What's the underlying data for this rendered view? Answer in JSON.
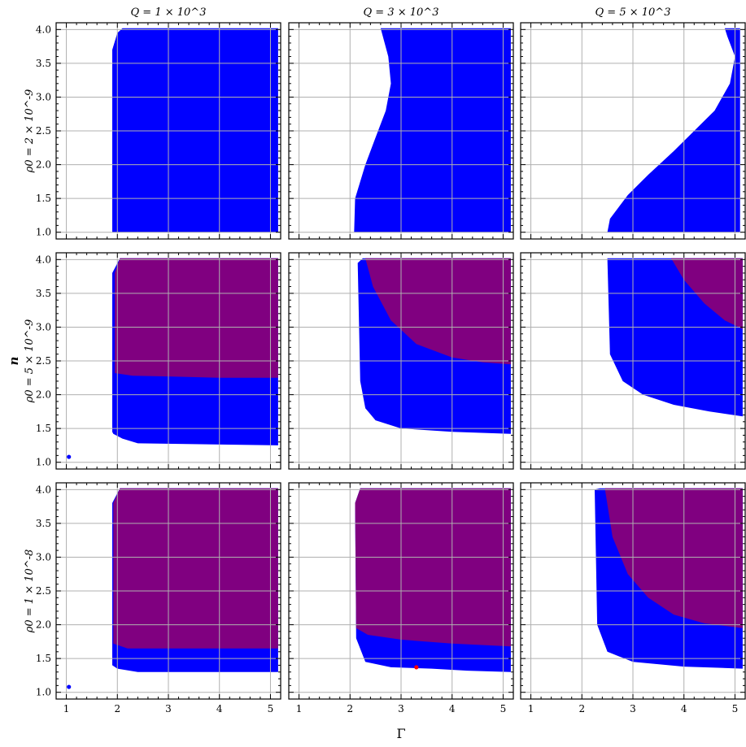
{
  "figure": {
    "column_titles": [
      "Q = 1 × 10^3",
      "Q = 3 × 10^3",
      "Q = 5 × 10^3"
    ],
    "row_labels": [
      "ρ0 = 2 × 10^-9",
      "ρ0 = 5 × 10^-9",
      "ρ0 = 1 × 10^-8"
    ],
    "xlabel": "Γ",
    "ylabel": "n"
  },
  "colors": {
    "blue": "#0000ff",
    "purple": "#800080",
    "red": "#ff0000"
  },
  "chart_data": {
    "type": "scatter",
    "layout": "3x3 grid of panels with shared axes",
    "xlim": [
      0.8,
      5.2
    ],
    "ylim": [
      0.9,
      4.1
    ],
    "xticks": [
      1,
      2,
      3,
      4,
      5
    ],
    "yticks": [
      1.0,
      1.5,
      2.0,
      2.5,
      3.0,
      3.5,
      4.0
    ],
    "xtick_labels": [
      "1",
      "2",
      "3",
      "4",
      "5"
    ],
    "ytick_labels": [
      "1.0",
      "1.5",
      "2.0",
      "2.5",
      "3.0",
      "3.5",
      "4.0"
    ],
    "grid": true,
    "panels": [
      {
        "row": 0,
        "col": 0,
        "regions": [
          {
            "color": "blue",
            "polygon": [
              [
                1.9,
                1.0
              ],
              [
                1.9,
                3.7
              ],
              [
                2.0,
                3.95
              ],
              [
                2.1,
                4.02
              ],
              [
                5.15,
                4.02
              ],
              [
                5.15,
                1.0
              ]
            ]
          }
        ],
        "points": []
      },
      {
        "row": 0,
        "col": 1,
        "regions": [
          {
            "color": "blue",
            "polygon": [
              [
                2.08,
                1.0
              ],
              [
                2.1,
                1.5
              ],
              [
                2.3,
                2.0
              ],
              [
                2.5,
                2.4
              ],
              [
                2.7,
                2.8
              ],
              [
                2.8,
                3.2
              ],
              [
                2.75,
                3.6
              ],
              [
                2.6,
                4.02
              ],
              [
                5.15,
                4.02
              ],
              [
                5.15,
                1.0
              ]
            ]
          }
        ],
        "points": []
      },
      {
        "row": 0,
        "col": 2,
        "regions": [
          {
            "color": "blue",
            "polygon": [
              [
                2.5,
                1.0
              ],
              [
                2.55,
                1.2
              ],
              [
                2.9,
                1.55
              ],
              [
                3.3,
                1.85
              ],
              [
                3.8,
                2.2
              ],
              [
                4.2,
                2.5
              ],
              [
                4.6,
                2.8
              ],
              [
                4.9,
                3.2
              ],
              [
                5.0,
                3.6
              ],
              [
                4.85,
                3.9
              ],
              [
                4.8,
                4.02
              ],
              [
                5.1,
                4.02
              ],
              [
                5.1,
                1.0
              ]
            ]
          }
        ],
        "points": []
      },
      {
        "row": 1,
        "col": 0,
        "regions": [
          {
            "color": "blue",
            "polygon": [
              [
                1.9,
                1.45
              ],
              [
                1.92,
                1.42
              ],
              [
                2.1,
                1.35
              ],
              [
                2.4,
                1.28
              ],
              [
                5.15,
                1.25
              ],
              [
                5.15,
                4.02
              ],
              [
                2.05,
                4.02
              ],
              [
                1.9,
                3.8
              ]
            ]
          },
          {
            "color": "purple",
            "polygon": [
              [
                1.95,
                2.32
              ],
              [
                2.3,
                2.28
              ],
              [
                3.0,
                2.27
              ],
              [
                4.0,
                2.25
              ],
              [
                5.15,
                2.25
              ],
              [
                5.15,
                4.02
              ],
              [
                2.05,
                4.02
              ],
              [
                1.95,
                3.8
              ]
            ]
          }
        ],
        "points": [
          {
            "x": 1.05,
            "y": 1.08,
            "color": "blue"
          }
        ]
      },
      {
        "row": 1,
        "col": 1,
        "regions": [
          {
            "color": "blue",
            "polygon": [
              [
                2.15,
                3.95
              ],
              [
                2.2,
                2.2
              ],
              [
                2.3,
                1.8
              ],
              [
                2.5,
                1.62
              ],
              [
                3.0,
                1.5
              ],
              [
                4.0,
                1.45
              ],
              [
                5.15,
                1.42
              ],
              [
                5.15,
                4.02
              ],
              [
                2.25,
                4.02
              ]
            ]
          },
          {
            "color": "purple",
            "polygon": [
              [
                2.3,
                4.02
              ],
              [
                2.45,
                3.6
              ],
              [
                2.8,
                3.1
              ],
              [
                3.3,
                2.75
              ],
              [
                4.0,
                2.55
              ],
              [
                4.6,
                2.48
              ],
              [
                5.15,
                2.45
              ],
              [
                5.15,
                4.02
              ]
            ]
          }
        ],
        "points": []
      },
      {
        "row": 1,
        "col": 2,
        "regions": [
          {
            "color": "blue",
            "polygon": [
              [
                2.5,
                4.02
              ],
              [
                2.55,
                2.6
              ],
              [
                2.8,
                2.2
              ],
              [
                3.2,
                2.0
              ],
              [
                3.8,
                1.85
              ],
              [
                4.5,
                1.75
              ],
              [
                5.15,
                1.68
              ],
              [
                5.15,
                4.02
              ]
            ]
          },
          {
            "color": "purple",
            "polygon": [
              [
                3.75,
                4.02
              ],
              [
                4.0,
                3.7
              ],
              [
                4.4,
                3.35
              ],
              [
                4.8,
                3.1
              ],
              [
                5.15,
                2.97
              ],
              [
                5.15,
                4.02
              ]
            ]
          }
        ],
        "points": []
      },
      {
        "row": 2,
        "col": 0,
        "regions": [
          {
            "color": "blue",
            "polygon": [
              [
                1.9,
                1.4
              ],
              [
                2.0,
                1.35
              ],
              [
                2.4,
                1.3
              ],
              [
                5.15,
                1.3
              ],
              [
                5.15,
                4.02
              ],
              [
                2.05,
                4.02
              ],
              [
                1.9,
                3.8
              ]
            ]
          },
          {
            "color": "purple",
            "polygon": [
              [
                1.92,
                1.72
              ],
              [
                2.2,
                1.65
              ],
              [
                5.15,
                1.65
              ],
              [
                5.15,
                4.02
              ],
              [
                2.05,
                4.02
              ],
              [
                1.92,
                3.8
              ]
            ]
          }
        ],
        "points": [
          {
            "x": 1.05,
            "y": 1.08,
            "color": "blue"
          }
        ]
      },
      {
        "row": 2,
        "col": 1,
        "regions": [
          {
            "color": "blue",
            "polygon": [
              [
                2.1,
                3.8
              ],
              [
                2.12,
                1.8
              ],
              [
                2.3,
                1.45
              ],
              [
                2.8,
                1.37
              ],
              [
                3.6,
                1.35
              ],
              [
                4.3,
                1.32
              ],
              [
                5.15,
                1.3
              ],
              [
                5.15,
                4.02
              ],
              [
                2.2,
                4.02
              ]
            ]
          },
          {
            "color": "purple",
            "polygon": [
              [
                2.1,
                3.8
              ],
              [
                2.12,
                1.95
              ],
              [
                2.35,
                1.85
              ],
              [
                3.0,
                1.78
              ],
              [
                4.0,
                1.72
              ],
              [
                5.15,
                1.68
              ],
              [
                5.15,
                4.02
              ],
              [
                2.2,
                4.02
              ]
            ]
          }
        ],
        "points": [
          {
            "x": 3.3,
            "y": 1.37,
            "color": "red"
          }
        ]
      },
      {
        "row": 2,
        "col": 2,
        "regions": [
          {
            "color": "blue",
            "polygon": [
              [
                2.25,
                4.0
              ],
              [
                2.3,
                2.0
              ],
              [
                2.5,
                1.6
              ],
              [
                3.0,
                1.45
              ],
              [
                4.0,
                1.38
              ],
              [
                5.15,
                1.35
              ],
              [
                5.15,
                4.02
              ],
              [
                2.35,
                4.02
              ]
            ]
          },
          {
            "color": "purple",
            "polygon": [
              [
                2.45,
                4.02
              ],
              [
                2.6,
                3.3
              ],
              [
                2.9,
                2.75
              ],
              [
                3.3,
                2.4
              ],
              [
                3.8,
                2.15
              ],
              [
                4.4,
                2.02
              ],
              [
                5.15,
                1.95
              ],
              [
                5.15,
                4.02
              ]
            ]
          }
        ],
        "points": []
      }
    ]
  }
}
